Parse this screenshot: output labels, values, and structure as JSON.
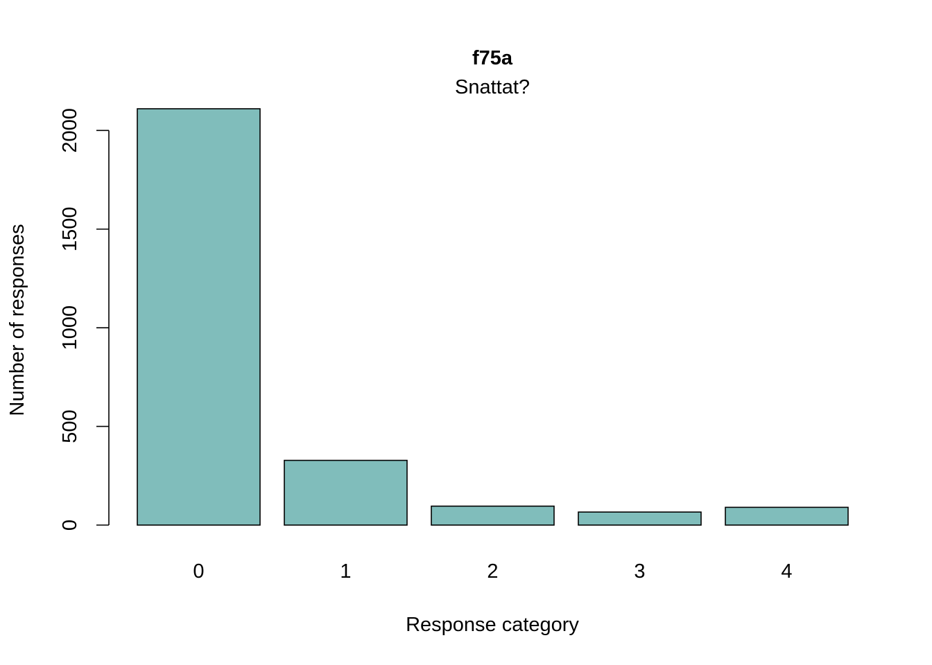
{
  "chart_data": {
    "type": "bar",
    "title": "f75a",
    "subtitle": "Snattat?",
    "xlabel": "Response category",
    "ylabel": "Number of responses",
    "categories": [
      "0",
      "1",
      "2",
      "3",
      "4"
    ],
    "values": [
      2110,
      328,
      96,
      66,
      90
    ],
    "ylim": [
      0,
      2110
    ],
    "yticks": [
      0,
      500,
      1000,
      1500,
      2000
    ],
    "grid": false,
    "bar_color": "#80BDBB"
  }
}
